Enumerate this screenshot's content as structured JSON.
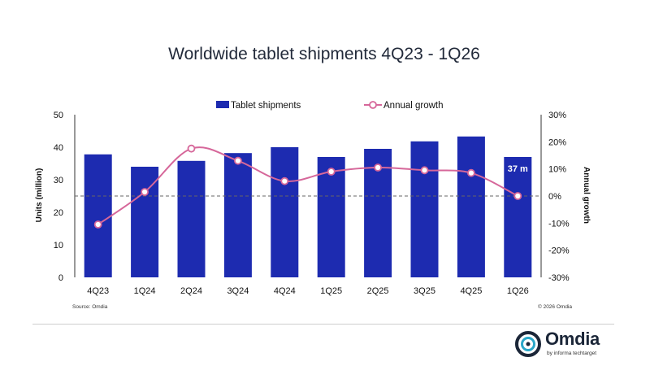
{
  "chart_data": {
    "type": "bar",
    "title": "Worldwide tablet shipments 4Q23 - 1Q26",
    "categories": [
      "4Q23",
      "1Q24",
      "2Q24",
      "3Q24",
      "4Q24",
      "1Q25",
      "2Q25",
      "3Q25",
      "4Q25",
      "1Q26"
    ],
    "series": [
      {
        "name": "Tablet shipments",
        "type": "bar",
        "axis": "left",
        "color": "#1d2bb0",
        "values": [
          37.8,
          34.0,
          35.8,
          38.2,
          40.0,
          37.0,
          39.5,
          41.8,
          43.3,
          37.0
        ]
      },
      {
        "name": "Annual growth",
        "type": "line",
        "axis": "right",
        "color": "#d6679a",
        "marker": "open-circle",
        "values": [
          -10.5,
          1.5,
          17.5,
          13.0,
          5.5,
          9.0,
          10.5,
          9.5,
          8.5,
          0.0
        ]
      }
    ],
    "ylabel": "Units (million)",
    "ylim": [
      0,
      50
    ],
    "yticks": [
      0,
      10,
      20,
      30,
      40,
      50
    ],
    "y2label": "Annual growth",
    "y2lim": [
      -30,
      30
    ],
    "y2ticks": [
      "-30%",
      "-20%",
      "-10%",
      "0%",
      "10%",
      "20%",
      "30%"
    ],
    "zero_line_style": "dashed",
    "legend_position": "top-center",
    "data_labels": [
      {
        "category": "1Q26",
        "series": "Tablet shipments",
        "text": "37 m"
      }
    ],
    "grid": false
  },
  "source_note": "Source: Omdia",
  "copyright_note": "© 2026 Omdia",
  "logo": {
    "name": "Omdia",
    "subtext": "by informa techtarget"
  }
}
